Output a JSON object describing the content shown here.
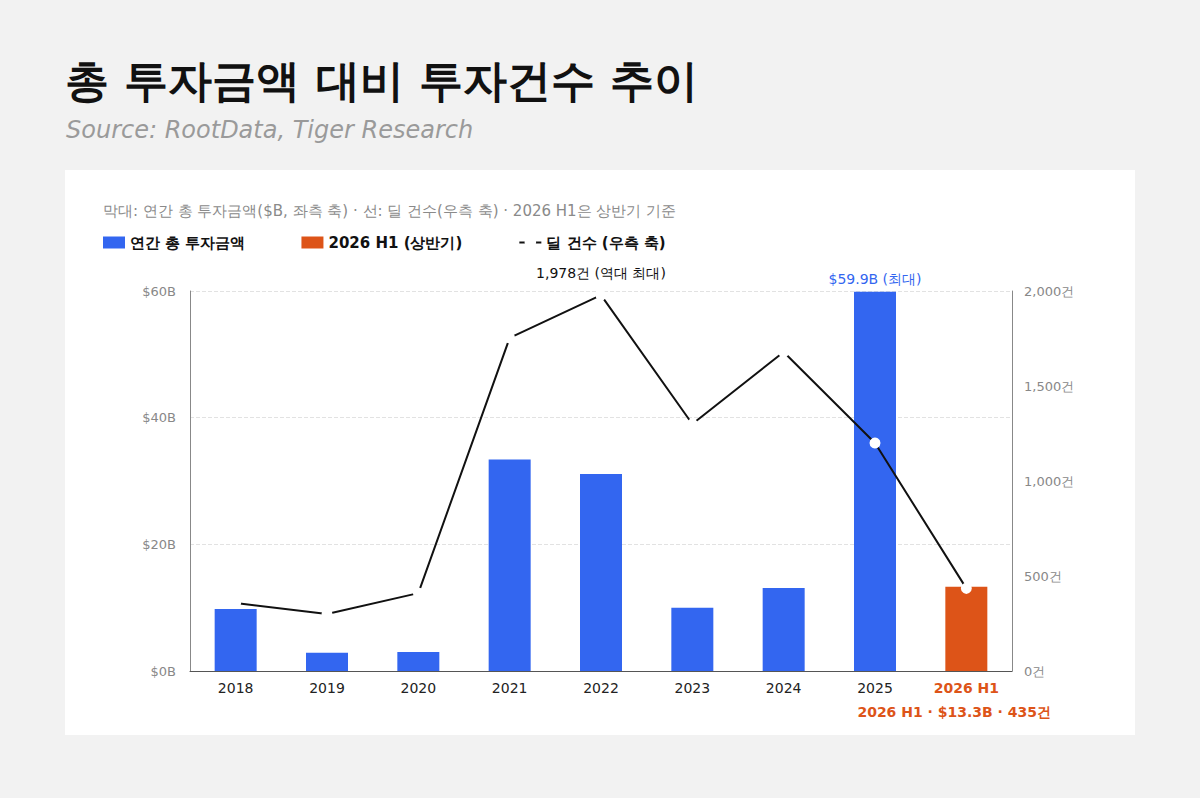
{
  "chart_data": {
    "type": "bar",
    "title": "총 투자금액 대비 투자건수 추이",
    "source": "Source: RootData, Tiger Research",
    "subtitle": "막대: 연간 총 투자금액($B, 좌측 축) · 선: 딜 건수(우측 축) · 2026 H1은 상반기 기준",
    "categories": [
      "2018",
      "2019",
      "2020",
      "2021",
      "2022",
      "2023",
      "2024",
      "2025",
      "2026 H1"
    ],
    "series": [
      {
        "name": "연간 총 투자금액",
        "type": "bar",
        "color": "#3366f0",
        "values": [
          9.8,
          2.9,
          3.0,
          33.4,
          31.1,
          10.0,
          13.1,
          59.9,
          null
        ]
      },
      {
        "name": "2026 H1 (상반기)",
        "type": "bar",
        "color": "#dd5418",
        "values": [
          null,
          null,
          null,
          null,
          null,
          null,
          null,
          null,
          13.3
        ]
      },
      {
        "name": "딜 건수 (우측 축)",
        "type": "line",
        "axis": "y2",
        "color": "#111111",
        "marker": "circle",
        "values": [
          358,
          300,
          410,
          1753,
          1978,
          1300,
          1679,
          1200,
          435
        ]
      }
    ],
    "ylim": [
      0,
      60
    ],
    "yticks": [
      {
        "value": 0,
        "label": "$0B"
      },
      {
        "value": 20,
        "label": "$20B"
      },
      {
        "value": 40,
        "label": "$40B"
      },
      {
        "value": 60,
        "label": "$60B"
      }
    ],
    "y2lim": [
      0,
      2000
    ],
    "y2ticks": [
      {
        "value": 0,
        "label": "0건"
      },
      {
        "value": 500,
        "label": "500건"
      },
      {
        "value": 1000,
        "label": "1,000건"
      },
      {
        "value": 1500,
        "label": "1,500건"
      },
      {
        "value": 2000,
        "label": "2,000건"
      }
    ],
    "grid": true,
    "legend": "top-left",
    "annotations": [
      {
        "text": "1,978건 (역대 최대)",
        "x": "2022",
        "series": "딜 건수 (우측 축)",
        "color": "#111111"
      },
      {
        "text": "$59.9B (최대)",
        "x": "2025",
        "series": "연간 총 투자금액",
        "color": "#3366f0"
      }
    ],
    "footnote": {
      "text": "2026 H1 · $13.3B · 435건",
      "color": "#dd5418"
    }
  }
}
